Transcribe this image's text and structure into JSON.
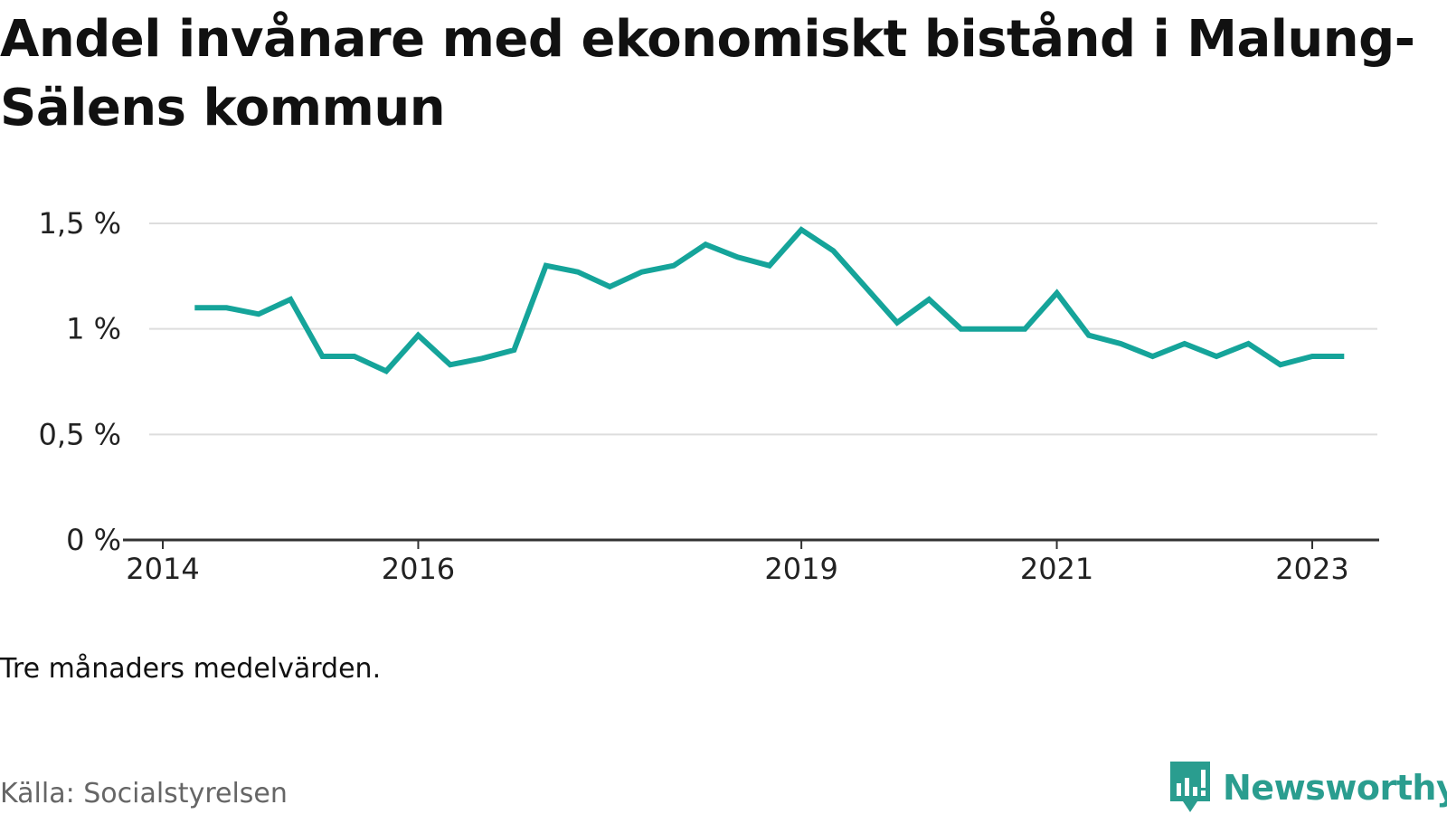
{
  "title": "Andel invånare med ekonomiskt bistånd i Malung-Sälens kommun",
  "note": "Tre månaders medelvärden.",
  "source": "Källa: Socialstyrelsen",
  "brand": {
    "name": "Newsworthy",
    "icon": "newsworthy-logo-icon",
    "color": "#2a9d8f"
  },
  "colors": {
    "line": "#15a49a",
    "grid": "#dddddd",
    "axis": "#333333"
  },
  "chart_data": {
    "type": "line",
    "title": "Andel invånare med ekonomiskt bistånd i Malung-Sälens kommun",
    "xlabel": "",
    "ylabel": "",
    "ylim": [
      0,
      1.5
    ],
    "xlim": [
      "2014-01",
      "2023-10"
    ],
    "yticks": [
      {
        "value": 0,
        "label": "0 %"
      },
      {
        "value": 0.5,
        "label": "0,5 %"
      },
      {
        "value": 1,
        "label": "1 %"
      },
      {
        "value": 1.5,
        "label": "1,5 %"
      }
    ],
    "xticks": [
      {
        "value": "2014-01",
        "label": "2014"
      },
      {
        "value": "2016-01",
        "label": "2016"
      },
      {
        "value": "2019-01",
        "label": "2019"
      },
      {
        "value": "2021-01",
        "label": "2021"
      },
      {
        "value": "2023-01",
        "label": "2023"
      }
    ],
    "grid": true,
    "series": [
      {
        "x": [
          "2014-04",
          "2014-07",
          "2014-10",
          "2015-01",
          "2015-04",
          "2015-07",
          "2015-10",
          "2016-01",
          "2016-04",
          "2016-07",
          "2016-10",
          "2017-01",
          "2017-04",
          "2017-07",
          "2017-10",
          "2018-01",
          "2018-04",
          "2018-07",
          "2018-10",
          "2019-01",
          "2019-04",
          "2019-07",
          "2019-10",
          "2020-01",
          "2020-04",
          "2020-07",
          "2020-10",
          "2021-01",
          "2021-04",
          "2021-07",
          "2021-10",
          "2022-01",
          "2022-04",
          "2022-07",
          "2022-10",
          "2023-01",
          "2023-04"
        ],
        "values": [
          1.1,
          1.1,
          1.07,
          1.14,
          0.87,
          0.87,
          0.8,
          0.97,
          0.83,
          0.86,
          0.9,
          1.3,
          1.27,
          1.2,
          1.27,
          1.3,
          1.4,
          1.34,
          1.3,
          1.47,
          1.37,
          1.2,
          1.03,
          1.14,
          1.0,
          1.0,
          1.0,
          1.17,
          0.97,
          0.93,
          0.87,
          0.93,
          0.87,
          0.93,
          0.83,
          0.87,
          0.87
        ]
      }
    ]
  }
}
